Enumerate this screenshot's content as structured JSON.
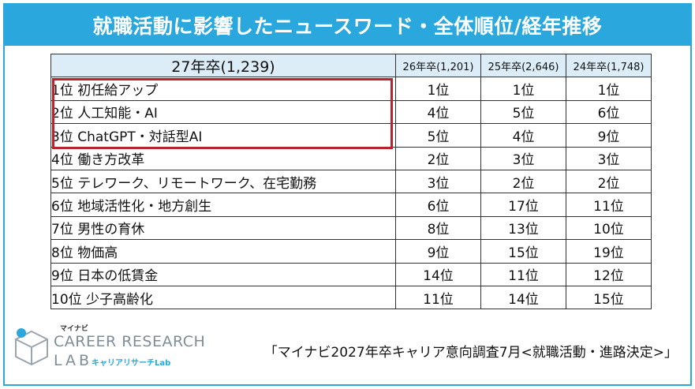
{
  "title": "就職活動に影響したニュースワード・全体順位/経年推移",
  "table": {
    "head_main": "27年卒(1,239)",
    "head_cols": [
      "26年卒(1,201)",
      "25年卒(2,646)",
      "24年卒(1,748)"
    ],
    "rows": [
      {
        "name": "1位 初任給アップ",
        "vals": [
          "1位",
          "1位",
          "1位"
        ]
      },
      {
        "name": "2位 人工知能・AI",
        "vals": [
          "4位",
          "5位",
          "6位"
        ]
      },
      {
        "name": "3位 ChatGPT・対話型AI",
        "vals": [
          "5位",
          "4位",
          "9位"
        ]
      },
      {
        "name": "4位 働き方改革",
        "vals": [
          "2位",
          "3位",
          "3位"
        ]
      },
      {
        "name": "5位 テレワーク、リモートワーク、在宅勤務",
        "vals": [
          "3位",
          "2位",
          "2位"
        ]
      },
      {
        "name": "6位 地域活性化・地方創生",
        "vals": [
          "6位",
          "17位",
          "11位"
        ]
      },
      {
        "name": "7位 男性の育休",
        "vals": [
          "8位",
          "13位",
          "10位"
        ]
      },
      {
        "name": "8位 物価高",
        "vals": [
          "9位",
          "15位",
          "19位"
        ]
      },
      {
        "name": "9位 日本の低賃金",
        "vals": [
          "14位",
          "11位",
          "12位"
        ]
      },
      {
        "name": "10位 少子高齢化",
        "vals": [
          "11位",
          "14位",
          "15位"
        ]
      }
    ]
  },
  "logo": {
    "small": "マイナビ",
    "line1": "CAREER RESEARCH",
    "line2": "LAB",
    "kana": "キャリアリサーチLab",
    "icon": "cube-logo-icon"
  },
  "source": "「マイナビ2027年卒キャリア意向調査7月<就職活動・進路決定>」",
  "colors": {
    "accent": "#2aa7dc",
    "highlight": "#b8232e",
    "header_bg": "#dcedf7"
  }
}
